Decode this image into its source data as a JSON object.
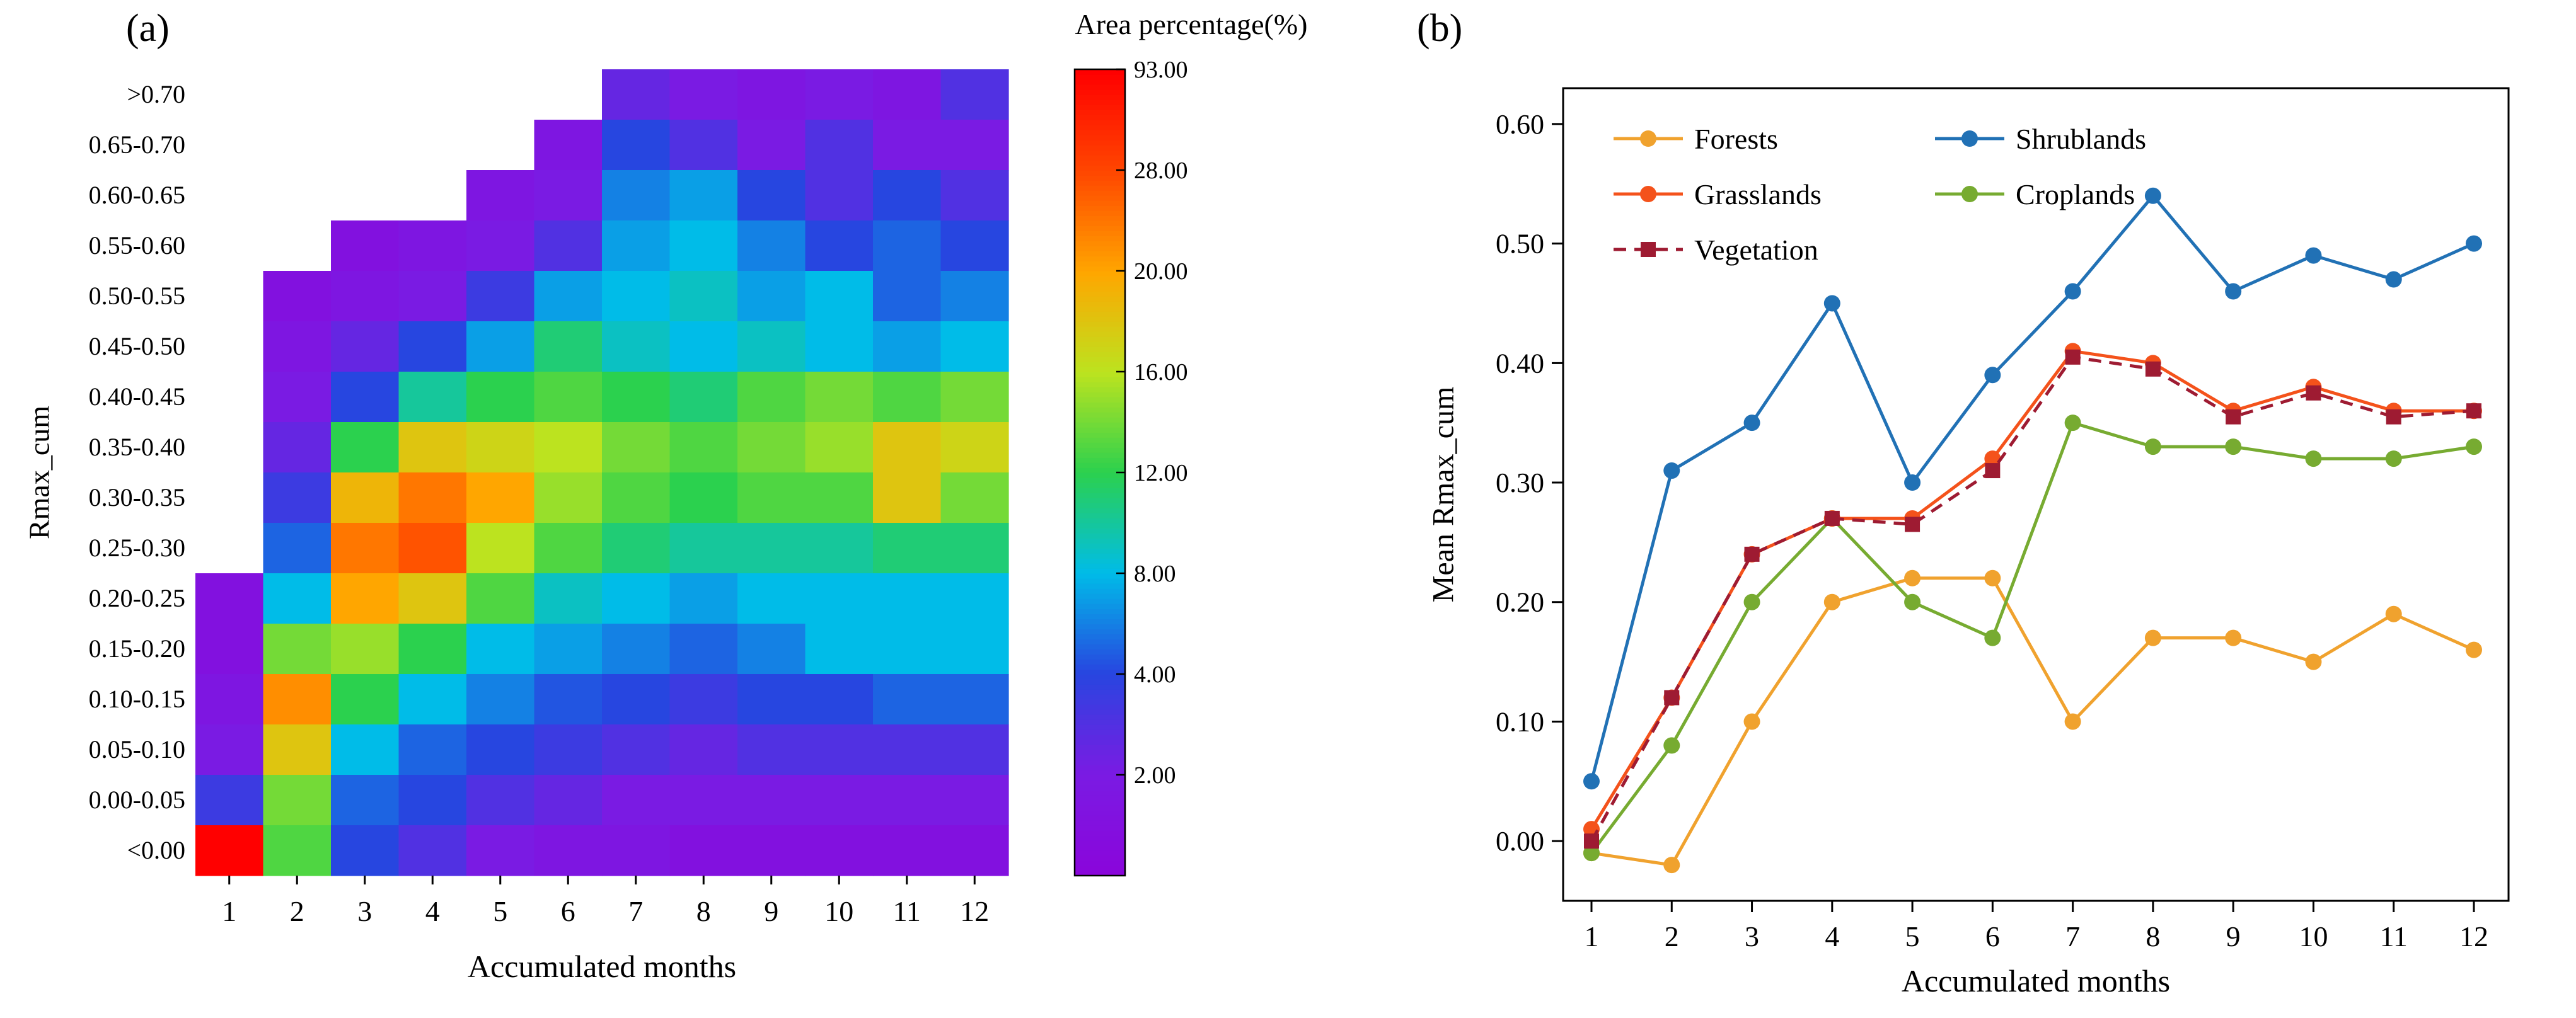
{
  "figure": {
    "panel_a_label": "(a)",
    "panel_b_label": "(b)"
  },
  "chart_data": [
    {
      "type": "heatmap",
      "xlabel": "Accumulated months",
      "ylabel": "Rmax_cum",
      "x_categories": [
        "1",
        "2",
        "3",
        "4",
        "5",
        "6",
        "7",
        "8",
        "9",
        "10",
        "11",
        "12"
      ],
      "y_categories_top_to_bottom": [
        ">0.70",
        "0.65-0.70",
        "0.60-0.65",
        "0.55-0.60",
        "0.50-0.55",
        "0.45-0.50",
        "0.40-0.45",
        "0.35-0.40",
        "0.30-0.35",
        "0.25-0.30",
        "0.20-0.25",
        "0.15-0.20",
        "0.10-0.15",
        "0.05-0.10",
        "0.00-0.05",
        "<0.00"
      ],
      "colorbar": {
        "title": "Area percentage(%)",
        "tick_labels_bottom_to_top": [
          "2.00",
          "4.00",
          "8.00",
          "12.00",
          "16.00",
          "20.00",
          "28.00",
          "93.00"
        ],
        "breakpoints": [
          0,
          2,
          4,
          8,
          12,
          16,
          20,
          28,
          93
        ],
        "gradient_stops": [
          "#8A06DB",
          "#7A1BE3",
          "#2746E0",
          "#00BCE8",
          "#2BD14E",
          "#BCE31F",
          "#FFA600",
          "#FF4700",
          "#FF0000"
        ]
      },
      "values": [
        [
          null,
          null,
          null,
          null,
          null,
          null,
          2.5,
          2,
          1.5,
          2,
          1.5,
          3
        ],
        [
          null,
          null,
          null,
          null,
          null,
          1.5,
          4,
          3,
          2,
          3,
          2,
          2
        ],
        [
          null,
          null,
          null,
          null,
          1.5,
          2,
          6,
          7,
          4,
          3,
          4,
          3
        ],
        [
          null,
          null,
          1,
          1.5,
          2,
          3,
          7,
          8,
          6,
          4,
          5,
          4
        ],
        [
          null,
          1,
          1.5,
          2,
          3.5,
          7,
          8,
          9,
          7,
          8,
          5,
          6
        ],
        [
          null,
          1.5,
          2.5,
          4,
          7,
          11,
          9,
          8,
          9,
          8,
          7,
          8
        ],
        [
          null,
          2,
          4,
          10,
          12,
          13,
          12,
          11,
          13,
          14,
          13,
          14
        ],
        [
          null,
          2.5,
          12,
          18,
          17,
          16,
          14,
          13,
          14,
          15,
          18,
          17
        ],
        [
          null,
          3.5,
          19,
          24,
          20,
          15,
          13,
          12,
          13,
          13,
          18,
          14
        ],
        [
          null,
          5,
          24,
          27,
          16,
          13,
          11,
          10,
          10,
          10,
          11,
          11
        ],
        [
          1,
          8,
          20,
          18,
          13,
          9,
          8,
          7,
          8,
          8,
          8,
          8
        ],
        [
          1,
          14,
          15,
          12,
          8,
          7,
          6,
          5,
          6,
          8,
          8,
          8
        ],
        [
          1.5,
          22,
          12,
          8,
          6,
          4.5,
          4,
          3.5,
          4,
          4,
          5,
          5
        ],
        [
          2,
          18,
          8,
          5,
          4,
          3.5,
          3,
          2.5,
          3,
          3,
          3,
          3
        ],
        [
          3.5,
          14,
          5,
          4,
          3,
          2.5,
          2,
          2,
          2,
          2,
          2,
          2
        ],
        [
          93,
          13,
          4,
          3,
          2,
          1.5,
          1.5,
          1,
          1,
          1,
          1,
          1
        ]
      ]
    },
    {
      "type": "line",
      "xlabel": "Accumulated months",
      "ylabel": "Mean Rmax_cum",
      "x": [
        1,
        2,
        3,
        4,
        5,
        6,
        7,
        8,
        9,
        10,
        11,
        12
      ],
      "ylim": [
        -0.05,
        0.63
      ],
      "ytick_labels": [
        "0.00",
        "0.10",
        "0.20",
        "0.30",
        "0.40",
        "0.50",
        "0.60"
      ],
      "series": [
        {
          "name": "Forests",
          "color": "#F0A22E",
          "marker": "circle",
          "dashed": false,
          "values": [
            -0.01,
            -0.02,
            0.1,
            0.2,
            0.22,
            0.22,
            0.1,
            0.17,
            0.17,
            0.15,
            0.19,
            0.16
          ]
        },
        {
          "name": "Croplands",
          "color": "#77AB31",
          "marker": "circle",
          "dashed": false,
          "values": [
            -0.01,
            0.08,
            0.2,
            0.27,
            0.2,
            0.17,
            0.35,
            0.33,
            0.33,
            0.32,
            0.32,
            0.33
          ]
        },
        {
          "name": "Grasslands",
          "color": "#F4521B",
          "marker": "circle",
          "dashed": false,
          "values": [
            0.01,
            0.12,
            0.24,
            0.27,
            0.27,
            0.32,
            0.41,
            0.4,
            0.36,
            0.38,
            0.36,
            0.36
          ]
        },
        {
          "name": "Vegetation",
          "color": "#9E1B32",
          "marker": "square",
          "dashed": true,
          "values": [
            0.0,
            0.12,
            0.24,
            0.27,
            0.265,
            0.31,
            0.405,
            0.395,
            0.355,
            0.375,
            0.355,
            0.36
          ]
        },
        {
          "name": "Shrublands",
          "color": "#2171B5",
          "marker": "circle",
          "dashed": false,
          "values": [
            0.05,
            0.31,
            0.35,
            0.45,
            0.3,
            0.39,
            0.46,
            0.54,
            0.46,
            0.49,
            0.47,
            0.5
          ]
        }
      ],
      "legend": {
        "columns": [
          [
            "Forests",
            "Grasslands",
            "Vegetation"
          ],
          [
            "Shrublands",
            "Croplands"
          ]
        ]
      }
    }
  ]
}
